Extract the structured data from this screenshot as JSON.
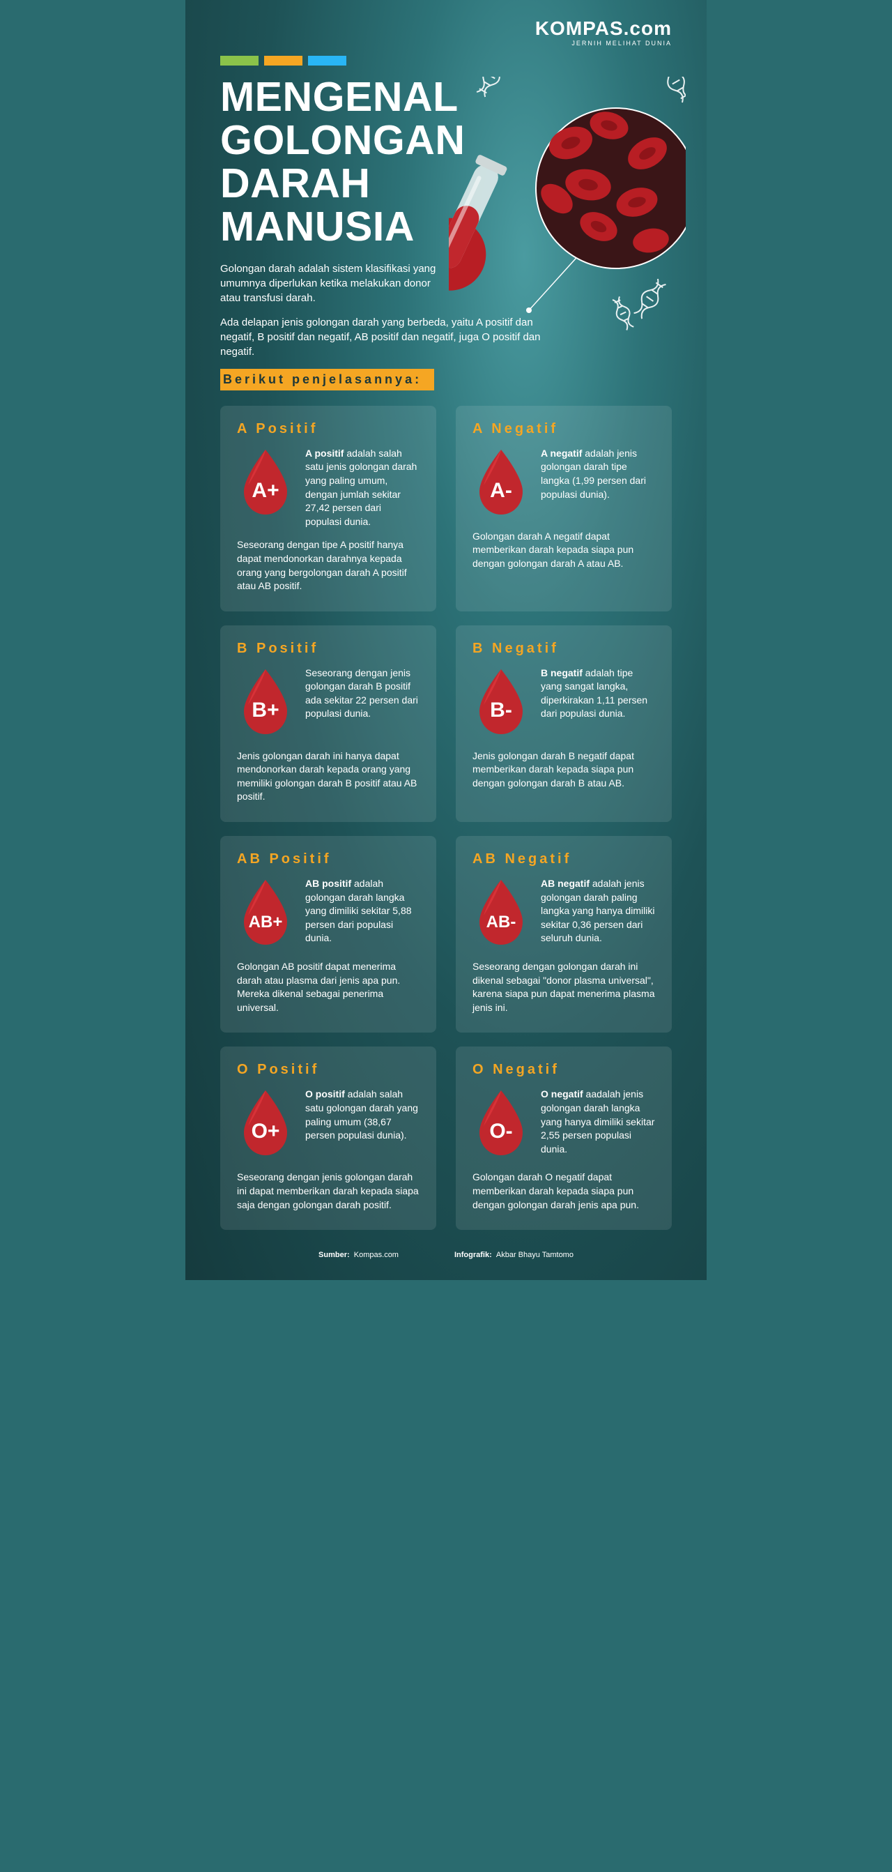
{
  "brand": {
    "name": "KOMPAS.com",
    "tagline": "JERNIH MELIHAT DUNIA"
  },
  "accent_colors": [
    "#8bc34a",
    "#f5a623",
    "#29b6f6"
  ],
  "title": "MENGENAL GOLONGAN DARAH MANUSIA",
  "intro1": "Golongan darah adalah sistem klasifikasi yang umumnya diperlukan ketika melakukan donor atau transfusi darah.",
  "intro2": "Ada delapan jenis golongan darah yang berbeda, yaitu A positif dan negatif, B positif dan negatif, AB positif dan negatif, juga O positif dan negatif.",
  "sub_header": "Berikut penjelasannya:",
  "card_title_color": "#f5a623",
  "drop_color": "#c1272d",
  "drop_highlight": "#e83a40",
  "drop_label_color": "#ffffff",
  "cards": [
    {
      "title": "A Positif",
      "symbol": "A+",
      "lead_bold": "A positif",
      "lead": " adalah salah satu jenis golongan darah yang paling umum, dengan jumlah sekitar 27,42 persen dari populasi dunia.",
      "body": "Seseorang dengan tipe A positif hanya dapat mendonorkan darahnya kepada orang yang bergolongan darah A positif atau AB positif."
    },
    {
      "title": "A Negatif",
      "symbol": "A-",
      "lead_bold": "A negatif",
      "lead": " adalah jenis golongan darah tipe langka (1,99 persen dari populasi dunia).",
      "body": "Golongan darah A negatif dapat memberikan darah kepada siapa pun dengan golongan darah A atau AB."
    },
    {
      "title": "B Positif",
      "symbol": "B+",
      "lead_bold": "",
      "lead": "Seseorang dengan jenis golongan darah B positif ada sekitar 22 persen dari populasi dunia.",
      "body": "Jenis golongan darah ini hanya dapat mendonorkan darah kepada orang yang memiliki golongan darah B positif atau AB positif."
    },
    {
      "title": "B Negatif",
      "symbol": "B-",
      "lead_bold": "B negatif",
      "lead": " adalah tipe yang sangat langka, diperkirakan 1,11 persen dari populasi dunia.",
      "body": "Jenis golongan darah B negatif dapat memberikan darah kepada siapa pun dengan golongan darah B atau AB."
    },
    {
      "title": "AB Positif",
      "symbol": "AB+",
      "lead_bold": "AB positif",
      "lead": " adalah golongan darah langka yang dimiliki sekitar 5,88 persen dari populasi dunia.",
      "body": "Golongan AB positif dapat menerima darah atau plasma dari jenis apa pun. Mereka dikenal sebagai penerima universal."
    },
    {
      "title": "AB Negatif",
      "symbol": "AB-",
      "lead_bold": "AB negatif",
      "lead": " adalah jenis golongan darah paling langka yang hanya dimiliki sekitar 0,36 persen dari seluruh dunia.",
      "body": "Seseorang dengan golongan darah ini dikenal sebagai \"donor plasma universal\", karena siapa pun dapat menerima plasma jenis ini."
    },
    {
      "title": "O Positif",
      "symbol": "O+",
      "lead_bold": "O positif",
      "lead": " adalah salah satu golongan darah yang paling umum (38,67 persen populasi dunia).",
      "body": "Seseorang dengan jenis golongan darah ini dapat memberikan darah kepada siapa saja dengan golongan darah positif."
    },
    {
      "title": "O Negatif",
      "symbol": "O-",
      "lead_bold": "O negatif",
      "lead": " aadalah jenis golongan darah langka yang hanya dimiliki sekitar 2,55 persen populasi dunia.",
      "body": "Golongan darah O negatif dapat memberikan darah kepada siapa pun dengan golongan darah jenis apa pun."
    }
  ],
  "footer": {
    "source_label": "Sumber:",
    "source_value": "Kompas.com",
    "credit_label": "Infografik:",
    "credit_value": "Akbar Bhayu Tamtomo"
  }
}
